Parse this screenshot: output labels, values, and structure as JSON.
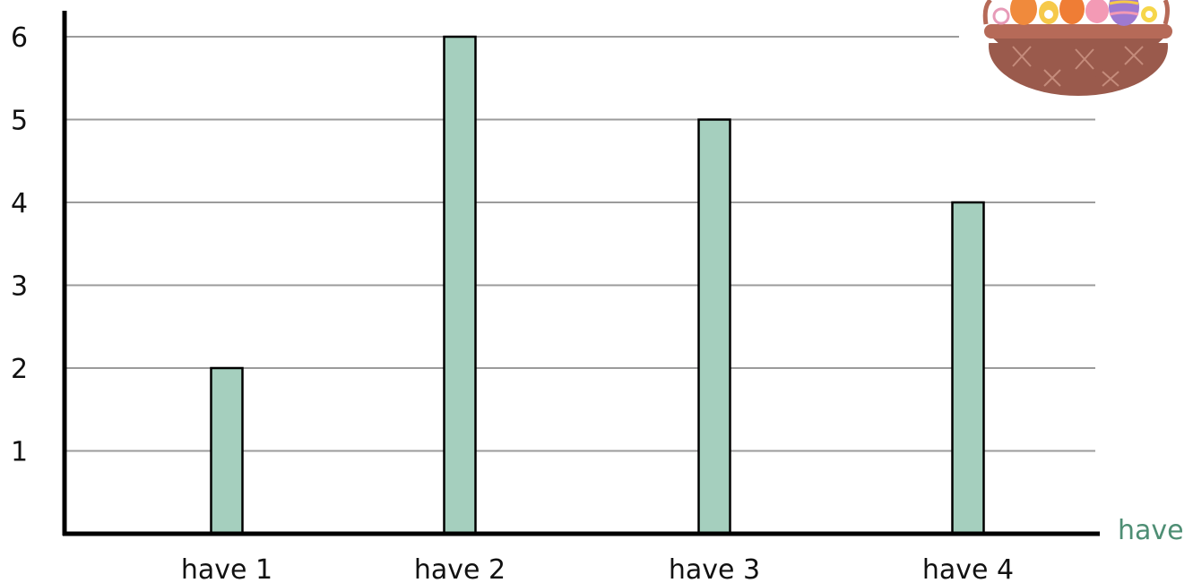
{
  "colors": {
    "bar_fill": "#a5cfbe",
    "bar_stroke": "#000000",
    "gridline": "#9b9b9b",
    "axis": "#000000",
    "x_axis_label": "#4e8e74"
  },
  "decoration": "easter-basket",
  "chart_data": {
    "type": "bar",
    "categories": [
      "have 1",
      "have 2",
      "have 3",
      "have 4"
    ],
    "values": [
      2,
      6,
      5,
      4
    ],
    "title": "",
    "xlabel": "have",
    "ylabel": "",
    "ylim": [
      0,
      6
    ],
    "yticks": [
      "1",
      "2",
      "3",
      "4",
      "5",
      "6"
    ],
    "grid": true,
    "legend": "none"
  }
}
